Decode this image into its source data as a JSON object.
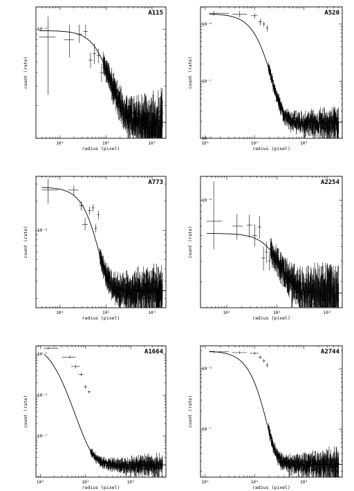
{
  "figure": {
    "description_note": "",
    "panels_count": 6
  },
  "chart_data": [
    {
      "type": "scatter",
      "title": "A115",
      "xlabel": "radius (pixel)",
      "ylabel": "count (rate)",
      "xscale": "log",
      "yscale": "log",
      "xlim": [
        3,
        2000
      ],
      "ylim": [
        1e-07,
        1.6e-06
      ],
      "xticklabels": [
        "10¹",
        "10²",
        "10³"
      ],
      "yticklabels": [
        "10⁻⁶"
      ],
      "model": {
        "type": "beta",
        "s0": 8.3e-07,
        "rc": 110,
        "beta": 0.75,
        "bkg": 1.4e-07
      },
      "points": [
        {
          "x": 5.5,
          "y": 8.5e-07,
          "xerr": [
            3.5,
            8
          ],
          "yerr": [
            2.5e-07,
            1.3e-06
          ]
        },
        {
          "x": 16,
          "y": 8e-07,
          "xerr": [
            12,
            20
          ],
          "yerr": [
            5.5e-07,
            1.1e-06
          ]
        },
        {
          "x": 26,
          "y": 9e-07,
          "xerr": [
            23,
            30
          ],
          "yerr": [
            7.5e-07,
            1.1e-06
          ]
        },
        {
          "x": 36,
          "y": 9.5e-07,
          "xerr": [
            32,
            40
          ],
          "yerr": [
            8.5e-07,
            1.1e-06
          ]
        },
        {
          "x": 46,
          "y": 5.2e-07,
          "xerr": [
            42,
            51
          ],
          "yerr": [
            4.4e-07,
            6.1e-07
          ]
        },
        {
          "x": 56,
          "y": 6e-07,
          "xerr": [
            51,
            62
          ],
          "yerr": [
            4.8e-07,
            7.4e-07
          ]
        },
        {
          "x": 68,
          "y": 5.7e-07,
          "xerr": [
            62,
            74
          ],
          "yerr": [
            4.9e-07,
            6.6e-07
          ]
        },
        {
          "x": 80,
          "y": 4e-07,
          "xerr": [
            74,
            86
          ],
          "yerr": [
            3.3e-07,
            4.8e-07
          ]
        }
      ]
    },
    {
      "type": "scatter",
      "title": "A520",
      "xlabel": "radius (pixel)",
      "ylabel": "count (rate)",
      "xscale": "log",
      "yscale": "log",
      "xlim": [
        8,
        6000
      ],
      "ylim": [
        1e-08,
        2e-06
      ],
      "xticklabels": [
        "10¹",
        "10²",
        "10³"
      ],
      "yticklabels": [
        "10⁻⁶",
        "10⁻⁷",
        "10⁻⁸"
      ],
      "model": {
        "type": "beta",
        "s0": 1.5e-06,
        "rc": 170,
        "beta": 1.1,
        "bkg": 1.9e-08
      },
      "points": [
        {
          "x": 15,
          "y": 1.55e-06,
          "xerr": [
            12,
            30
          ],
          "yerr": [
            1.4e-06,
            1.7e-06
          ]
        },
        {
          "x": 50,
          "y": 1.5e-06,
          "xerr": [
            35,
            70
          ],
          "yerr": [
            1.3e-06,
            1.7e-06
          ]
        },
        {
          "x": 100,
          "y": 1.4e-06,
          "xerr": [
            85,
            115
          ],
          "yerr": [
            1.25e-06,
            1.55e-06
          ]
        },
        {
          "x": 130,
          "y": 1.1e-06,
          "xerr": [
            118,
            142
          ],
          "yerr": [
            9.5e-07,
            1.25e-06
          ]
        },
        {
          "x": 155,
          "y": 1e-06,
          "xerr": [
            145,
            165
          ],
          "yerr": [
            8.8e-07,
            1.1e-06
          ]
        },
        {
          "x": 180,
          "y": 8.5e-07,
          "xerr": [
            170,
            190
          ],
          "yerr": [
            7.4e-07,
            9.6e-07
          ]
        }
      ]
    },
    {
      "type": "scatter",
      "title": "A773",
      "xlabel": "radius (pixel)",
      "ylabel": "count (rate)",
      "xscale": "log",
      "yscale": "log",
      "xlim": [
        3,
        2000
      ],
      "ylim": [
        1.6e-07,
        3.6e-06
      ],
      "xticklabels": [
        "10¹",
        "10²",
        "10³"
      ],
      "yticklabels": [
        "10⁻⁶"
      ],
      "model": {
        "type": "beta",
        "s0": 2.55e-06,
        "rc": 70,
        "beta": 1.1,
        "bkg": 2.4e-07
      },
      "points": [
        {
          "x": 5.5,
          "y": 2.6e-06,
          "xerr": [
            4,
            9
          ],
          "yerr": [
            1.9e-06,
            3.4e-06
          ]
        },
        {
          "x": 20,
          "y": 2.6e-06,
          "xerr": [
            15,
            25
          ],
          "yerr": [
            2.3e-06,
            2.9e-06
          ]
        },
        {
          "x": 29,
          "y": 1.8e-06,
          "xerr": [
            26,
            33
          ],
          "yerr": [
            1.6e-06,
            2e-06
          ]
        },
        {
          "x": 35,
          "y": 1.15e-06,
          "xerr": [
            30,
            40
          ],
          "yerr": [
            1e-06,
            1.35e-06
          ]
        },
        {
          "x": 44,
          "y": 1.6e-06,
          "xerr": [
            40,
            48
          ],
          "yerr": [
            1.45e-06,
            1.75e-06
          ]
        },
        {
          "x": 52,
          "y": 1.7e-06,
          "xerr": [
            48,
            56
          ],
          "yerr": [
            1.55e-06,
            1.85e-06
          ]
        },
        {
          "x": 60,
          "y": 1.05e-06,
          "xerr": [
            56,
            64
          ],
          "yerr": [
            9.5e-07,
            1.15e-06
          ]
        },
        {
          "x": 68,
          "y": 1.45e-06,
          "xerr": [
            64,
            72
          ],
          "yerr": [
            1.3e-06,
            1.6e-06
          ]
        }
      ]
    },
    {
      "type": "scatter",
      "title": "A2254",
      "xlabel": "radius (pixel)",
      "ylabel": "count (rate)",
      "xscale": "log",
      "yscale": "log",
      "xlim": [
        3,
        2000
      ],
      "ylim": [
        1.2e-07,
        1.6e-06
      ],
      "xticklabels": [
        "10¹",
        "10²",
        "10³"
      ],
      "yticklabels": [
        "10⁻⁶"
      ],
      "model": {
        "type": "beta",
        "s0": 3.6e-07,
        "rc": 130,
        "beta": 0.8,
        "bkg": 1.6e-07
      },
      "points": [
        {
          "x": 5.5,
          "y": 6.6e-07,
          "xerr": [
            4,
            8
          ],
          "yerr": [
            3.8e-07,
            1.45e-06
          ]
        },
        {
          "x": 16,
          "y": 6e-07,
          "xerr": [
            13,
            21
          ],
          "yerr": [
            4.6e-07,
            7.6e-07
          ]
        },
        {
          "x": 28,
          "y": 6.1e-07,
          "xerr": [
            25,
            32
          ],
          "yerr": [
            4.8e-07,
            7.5e-07
          ]
        },
        {
          "x": 36,
          "y": 5e-07,
          "xerr": [
            32,
            40
          ],
          "yerr": [
            4e-07,
            6.2e-07
          ]
        },
        {
          "x": 45,
          "y": 5.9e-07,
          "xerr": [
            41,
            49
          ],
          "yerr": [
            4.7e-07,
            7.3e-07
          ]
        },
        {
          "x": 54,
          "y": 3.2e-07,
          "xerr": [
            49,
            59
          ],
          "yerr": [
            2.5e-07,
            4e-07
          ]
        },
        {
          "x": 62,
          "y": 3.6e-07,
          "xerr": [
            58,
            66
          ],
          "yerr": [
            2.9e-07,
            4.4e-07
          ]
        },
        {
          "x": 70,
          "y": 3e-07,
          "xerr": [
            66,
            74
          ],
          "yerr": [
            2.5e-07,
            3.6e-07
          ]
        }
      ]
    },
    {
      "type": "scatter",
      "title": "A1664",
      "xlabel": "radius (pixel)",
      "ylabel": "count (rate)",
      "xscale": "log",
      "yscale": "log",
      "xlim": [
        8,
        6000
      ],
      "ylim": [
        1e-08,
        1.6e-05
      ],
      "xticklabels": [
        "10¹",
        "10²",
        "10³"
      ],
      "yticklabels": [
        "10⁻⁵",
        "10⁻⁶",
        "10⁻⁷"
      ],
      "model": {
        "type": "beta",
        "s0": 1.7e-05,
        "rc": 20,
        "beta": 0.75,
        "bkg": 2e-08
      },
      "points": [
        {
          "x": 15,
          "y": 1.4e-05,
          "xerr": [
            12,
            25
          ],
          "yerr": [
            1.3e-05,
            1.5e-05
          ]
        },
        {
          "x": 45,
          "y": 8.5e-06,
          "xerr": [
            30,
            60
          ],
          "yerr": [
            7.8e-06,
            9.2e-06
          ]
        },
        {
          "x": 60,
          "y": 5e-06,
          "xerr": [
            48,
            75
          ],
          "yerr": [
            4.5e-06,
            5.5e-06
          ]
        },
        {
          "x": 80,
          "y": 3.2e-06,
          "xerr": [
            70,
            90
          ],
          "yerr": [
            2.9e-06,
            3.5e-06
          ]
        },
        {
          "x": 100,
          "y": 1.6e-06,
          "xerr": [
            92,
            108
          ],
          "yerr": [
            1.45e-06,
            1.75e-06
          ]
        },
        {
          "x": 120,
          "y": 1.2e-06,
          "xerr": [
            112,
            128
          ],
          "yerr": [
            1.1e-06,
            1.3e-06
          ]
        }
      ]
    },
    {
      "type": "scatter",
      "title": "A2744",
      "xlabel": "radius (pixel)",
      "ylabel": "count (rate)",
      "xscale": "log",
      "yscale": "log",
      "xlim": [
        8,
        6000
      ],
      "ylim": [
        1.6e-08,
        2.4e-06
      ],
      "xticklabels": [
        "10¹",
        "10²",
        "10³"
      ],
      "yticklabels": [
        "10⁻⁶",
        "10⁻⁷"
      ],
      "model": {
        "type": "beta",
        "s0": 1.95e-06,
        "rc": 150,
        "beta": 1.3,
        "bkg": 2.6e-08
      },
      "points": [
        {
          "x": 15,
          "y": 1.9e-06,
          "xerr": [
            12,
            30
          ],
          "yerr": [
            1.8e-06,
            2e-06
          ]
        },
        {
          "x": 50,
          "y": 1.85e-06,
          "xerr": [
            35,
            70
          ],
          "yerr": [
            1.75e-06,
            1.95e-06
          ]
        },
        {
          "x": 100,
          "y": 1.8e-06,
          "xerr": [
            80,
            120
          ],
          "yerr": [
            1.7e-06,
            1.9e-06
          ]
        },
        {
          "x": 130,
          "y": 1.55e-06,
          "xerr": [
            120,
            140
          ],
          "yerr": [
            1.45e-06,
            1.65e-06
          ]
        },
        {
          "x": 155,
          "y": 1.35e-06,
          "xerr": [
            145,
            165
          ],
          "yerr": [
            1.25e-06,
            1.45e-06
          ]
        },
        {
          "x": 180,
          "y": 1.15e-06,
          "xerr": [
            170,
            190
          ],
          "yerr": [
            1.05e-06,
            1.25e-06
          ]
        }
      ]
    }
  ]
}
